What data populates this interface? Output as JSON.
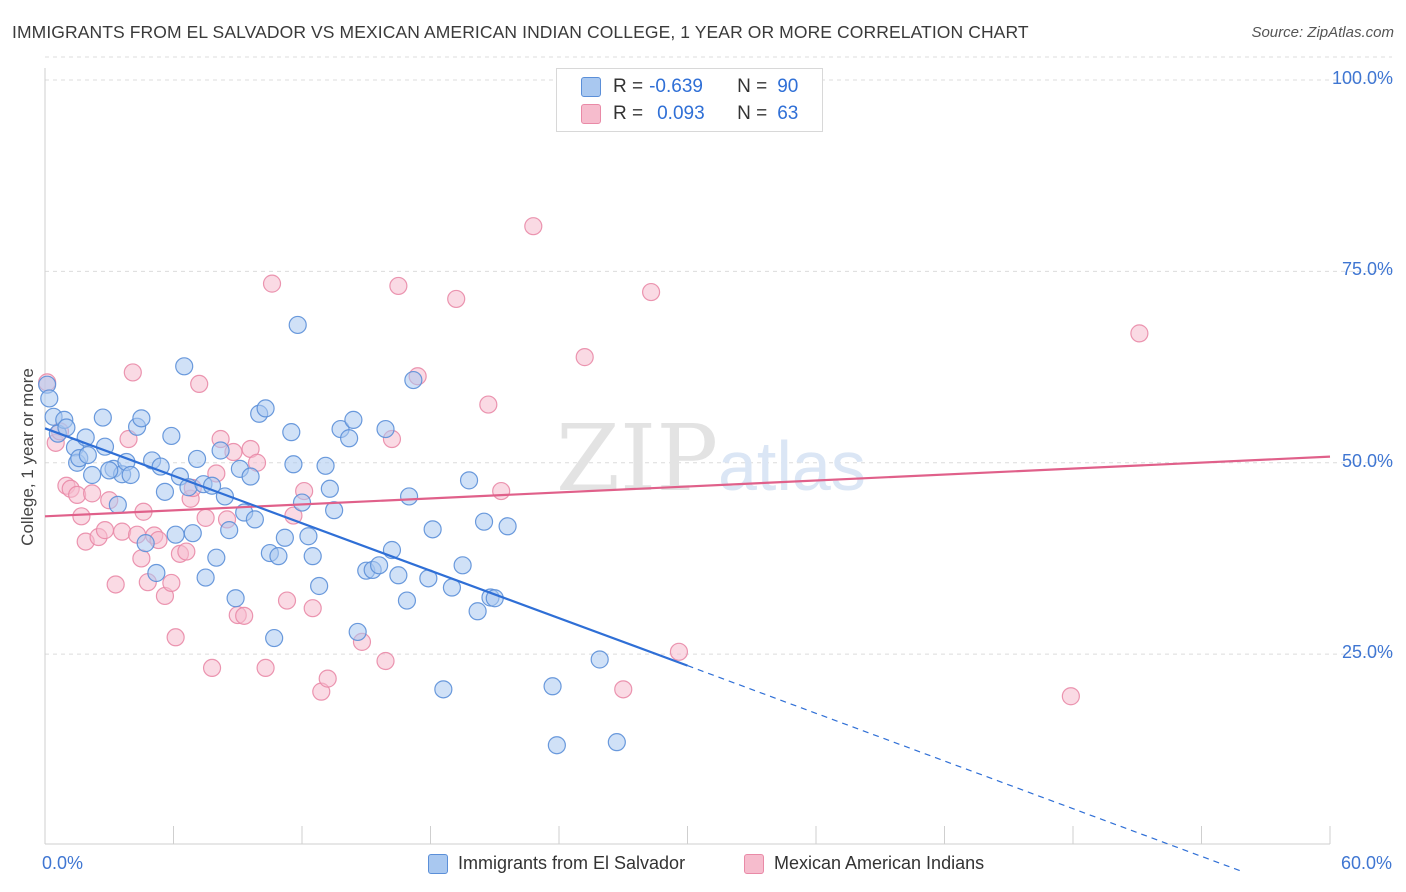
{
  "title": "IMMIGRANTS FROM EL SALVADOR VS MEXICAN AMERICAN INDIAN COLLEGE, 1 YEAR OR MORE CORRELATION CHART",
  "source": "Source: ZipAtlas.com",
  "watermark": {
    "zip": "ZIP",
    "atlas": "atlas"
  },
  "colors": {
    "blue_fill": "#a9c8f0",
    "blue_stroke": "#5b8fd8",
    "blue_line": "#2f6fd6",
    "pink_fill": "#f6bccd",
    "pink_stroke": "#e98aa7",
    "pink_line": "#e0608a",
    "tick_text": "#3f76d2",
    "grid": "#dcdcdc"
  },
  "legend": {
    "items": [
      {
        "r_label": "R =",
        "r_value": "-0.639",
        "n_label": "N =",
        "n_value": "90"
      },
      {
        "r_label": "R =",
        "r_value": "0.093",
        "n_label": "N =",
        "n_value": "63"
      }
    ]
  },
  "chart_data": {
    "type": "scatter",
    "title": "IMMIGRANTS FROM EL SALVADOR VS MEXICAN AMERICAN INDIAN COLLEGE, 1 YEAR OR MORE CORRELATION CHART",
    "xlabel": "",
    "ylabel": "College, 1 year or more",
    "xlim": [
      0,
      60
    ],
    "ylim": [
      0,
      105
    ],
    "x_tick_labels": {
      "min": "0.0%",
      "max": "60.0%"
    },
    "y_ticks": [
      25,
      50,
      75,
      100
    ],
    "y_tick_labels": [
      "25.0%",
      "50.0%",
      "75.0%",
      "100.0%"
    ],
    "grid": "horizontal dashed",
    "legend_position": "top-center and bottom",
    "series": [
      {
        "name": "Immigrants from El Salvador",
        "color": "blue",
        "r": -0.639,
        "n": 90,
        "trend": {
          "x0": 0,
          "y0": 54.5,
          "x1": 30,
          "y1": 23.5,
          "dashed_to_x": 56,
          "dashed_to_y": -3.5
        },
        "points": [
          [
            0.1,
            60.2
          ],
          [
            0.2,
            58.4
          ],
          [
            0.4,
            56.0
          ],
          [
            0.6,
            53.8
          ],
          [
            0.9,
            55.6
          ],
          [
            1.4,
            52.0
          ],
          [
            1.5,
            50.0
          ],
          [
            1.6,
            50.6
          ],
          [
            1.9,
            53.3
          ],
          [
            2.2,
            48.4
          ],
          [
            2.7,
            55.9
          ],
          [
            2.8,
            52.1
          ],
          [
            3.2,
            49.2
          ],
          [
            3.4,
            44.5
          ],
          [
            3.6,
            48.5
          ],
          [
            3.8,
            50.1
          ],
          [
            4.0,
            48.4
          ],
          [
            4.3,
            54.7
          ],
          [
            4.5,
            55.8
          ],
          [
            4.7,
            39.5
          ],
          [
            5.0,
            50.3
          ],
          [
            5.2,
            35.6
          ],
          [
            5.4,
            49.5
          ],
          [
            5.6,
            46.2
          ],
          [
            5.9,
            53.5
          ],
          [
            6.1,
            40.6
          ],
          [
            6.3,
            48.2
          ],
          [
            6.5,
            62.6
          ],
          [
            6.7,
            46.8
          ],
          [
            6.9,
            40.8
          ],
          [
            7.1,
            50.5
          ],
          [
            7.4,
            47.2
          ],
          [
            7.5,
            35.0
          ],
          [
            7.8,
            47.0
          ],
          [
            8.0,
            37.6
          ],
          [
            8.2,
            51.6
          ],
          [
            8.4,
            45.6
          ],
          [
            8.6,
            41.2
          ],
          [
            8.9,
            32.3
          ],
          [
            9.1,
            49.2
          ],
          [
            9.3,
            43.5
          ],
          [
            9.6,
            48.2
          ],
          [
            9.8,
            42.6
          ],
          [
            10.0,
            56.4
          ],
          [
            10.3,
            57.1
          ],
          [
            10.5,
            38.2
          ],
          [
            10.7,
            27.1
          ],
          [
            10.9,
            37.8
          ],
          [
            11.2,
            40.2
          ],
          [
            11.5,
            54.0
          ],
          [
            11.6,
            49.8
          ],
          [
            11.8,
            68.0
          ],
          [
            12.0,
            44.8
          ],
          [
            12.3,
            40.4
          ],
          [
            12.5,
            37.8
          ],
          [
            12.8,
            33.9
          ],
          [
            13.1,
            49.6
          ],
          [
            13.3,
            46.6
          ],
          [
            13.5,
            43.8
          ],
          [
            13.8,
            54.4
          ],
          [
            14.2,
            53.2
          ],
          [
            14.4,
            55.6
          ],
          [
            14.6,
            27.9
          ],
          [
            15.0,
            35.9
          ],
          [
            15.3,
            36.0
          ],
          [
            15.6,
            36.6
          ],
          [
            15.9,
            54.4
          ],
          [
            16.2,
            38.6
          ],
          [
            16.5,
            35.3
          ],
          [
            16.9,
            32.0
          ],
          [
            17.0,
            45.6
          ],
          [
            17.2,
            60.8
          ],
          [
            17.9,
            34.9
          ],
          [
            18.1,
            41.3
          ],
          [
            18.6,
            20.4
          ],
          [
            19.0,
            33.7
          ],
          [
            19.5,
            36.6
          ],
          [
            19.8,
            47.7
          ],
          [
            20.2,
            30.6
          ],
          [
            20.5,
            42.3
          ],
          [
            20.8,
            32.4
          ],
          [
            21.0,
            32.3
          ],
          [
            21.6,
            41.7
          ],
          [
            23.7,
            20.8
          ],
          [
            23.9,
            13.1
          ],
          [
            25.9,
            24.3
          ],
          [
            26.7,
            13.5
          ],
          [
            1.0,
            54.6
          ],
          [
            2.0,
            51.0
          ],
          [
            3.0,
            49.0
          ]
        ]
      },
      {
        "name": "Mexican American Indians",
        "color": "pink",
        "r": 0.093,
        "n": 63,
        "trend": {
          "x0": 0,
          "y0": 43.0,
          "x1": 60,
          "y1": 50.8
        },
        "points": [
          [
            0.1,
            60.5
          ],
          [
            0.5,
            52.6
          ],
          [
            0.7,
            54.1
          ],
          [
            1.0,
            47.0
          ],
          [
            1.2,
            46.6
          ],
          [
            1.5,
            45.8
          ],
          [
            1.7,
            43.0
          ],
          [
            1.9,
            39.7
          ],
          [
            2.2,
            46.0
          ],
          [
            2.5,
            40.3
          ],
          [
            2.8,
            41.2
          ],
          [
            3.0,
            45.1
          ],
          [
            3.3,
            34.1
          ],
          [
            3.6,
            41.0
          ],
          [
            3.9,
            53.1
          ],
          [
            4.1,
            61.8
          ],
          [
            4.3,
            40.6
          ],
          [
            4.5,
            37.5
          ],
          [
            4.6,
            43.6
          ],
          [
            4.8,
            34.4
          ],
          [
            5.1,
            40.5
          ],
          [
            5.3,
            39.9
          ],
          [
            5.6,
            32.6
          ],
          [
            5.9,
            34.3
          ],
          [
            6.1,
            27.2
          ],
          [
            6.3,
            38.1
          ],
          [
            6.6,
            38.4
          ],
          [
            6.8,
            45.3
          ],
          [
            6.9,
            46.7
          ],
          [
            7.2,
            60.3
          ],
          [
            7.5,
            42.8
          ],
          [
            7.8,
            23.2
          ],
          [
            8.0,
            48.6
          ],
          [
            8.2,
            53.1
          ],
          [
            8.5,
            42.6
          ],
          [
            8.8,
            51.4
          ],
          [
            9.0,
            30.1
          ],
          [
            9.3,
            30.0
          ],
          [
            9.6,
            51.8
          ],
          [
            9.9,
            50.0
          ],
          [
            10.3,
            23.2
          ],
          [
            10.6,
            73.4
          ],
          [
            11.3,
            32.0
          ],
          [
            11.6,
            43.1
          ],
          [
            12.1,
            46.3
          ],
          [
            12.5,
            31.0
          ],
          [
            12.9,
            20.1
          ],
          [
            13.2,
            21.8
          ],
          [
            14.8,
            26.6
          ],
          [
            15.9,
            24.1
          ],
          [
            16.2,
            53.1
          ],
          [
            16.5,
            73.1
          ],
          [
            17.4,
            61.3
          ],
          [
            19.2,
            71.4
          ],
          [
            20.7,
            57.6
          ],
          [
            21.3,
            46.3
          ],
          [
            22.8,
            80.9
          ],
          [
            25.2,
            63.8
          ],
          [
            27.0,
            20.4
          ],
          [
            28.3,
            72.3
          ],
          [
            29.6,
            25.3
          ],
          [
            47.9,
            19.5
          ],
          [
            51.1,
            66.9
          ]
        ]
      }
    ]
  },
  "bottom_legend": [
    {
      "label": "Immigrants from El Salvador"
    },
    {
      "label": "Mexican American Indians"
    }
  ]
}
